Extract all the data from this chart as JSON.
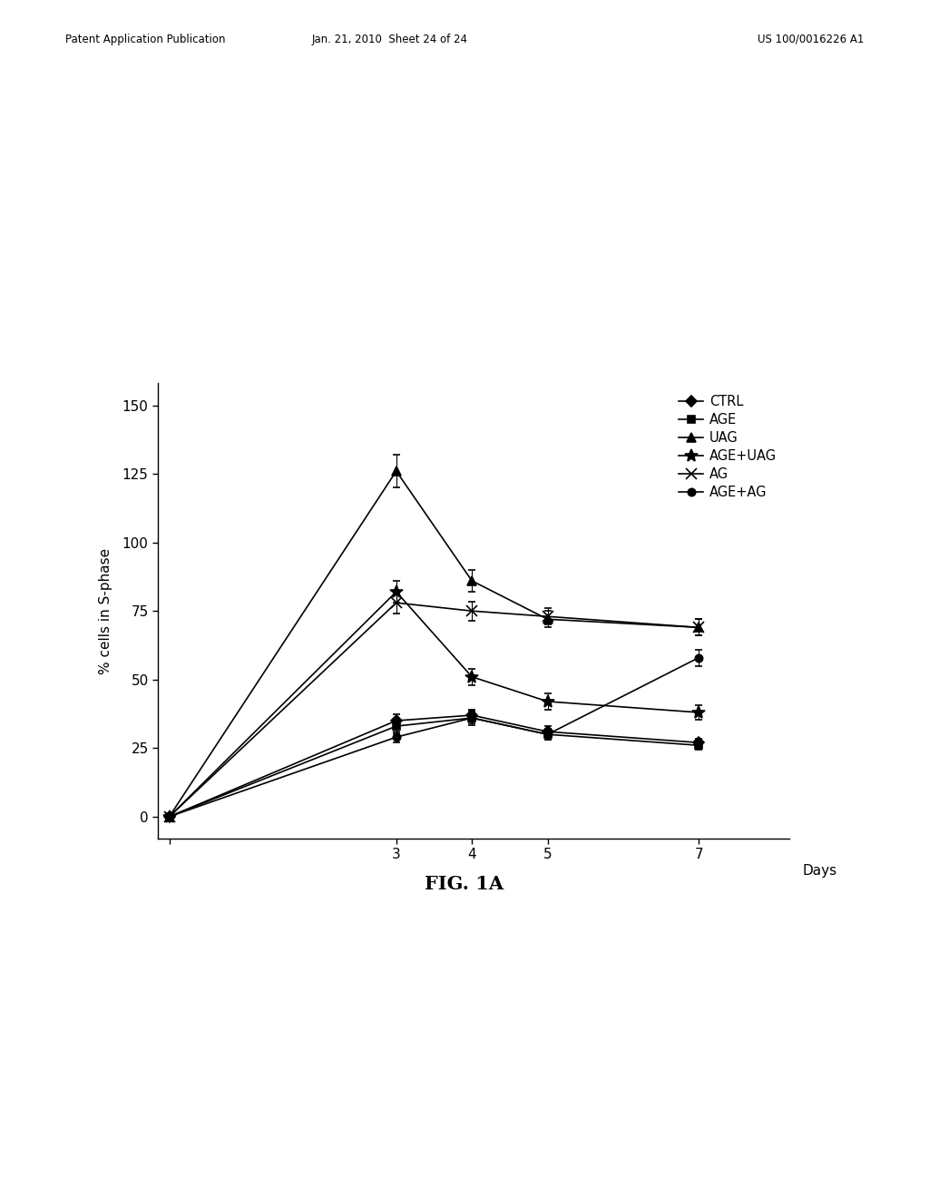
{
  "x": [
    0,
    3,
    4,
    5,
    7
  ],
  "series": {
    "CTRL": {
      "y": [
        0,
        35,
        37,
        31,
        27
      ],
      "yerr": [
        0,
        2.5,
        2,
        2,
        1.5
      ],
      "marker": "D",
      "linestyle": "-",
      "color": "#000000",
      "markersize": 6,
      "markerfilled": true
    },
    "AGE": {
      "y": [
        0,
        33,
        36,
        30,
        26
      ],
      "yerr": [
        0,
        2.5,
        2,
        2,
        1.5
      ],
      "marker": "s",
      "linestyle": "-",
      "color": "#000000",
      "markersize": 6,
      "markerfilled": true
    },
    "UAG": {
      "y": [
        0,
        126,
        86,
        72,
        69
      ],
      "yerr": [
        0,
        6,
        4,
        3,
        3
      ],
      "marker": "^",
      "linestyle": "-",
      "color": "#000000",
      "markersize": 7,
      "markerfilled": true
    },
    "AGE+UAG": {
      "y": [
        0,
        82,
        51,
        42,
        38
      ],
      "yerr": [
        0,
        4,
        3,
        3,
        2.5
      ],
      "marker": "*",
      "linestyle": "-",
      "color": "#000000",
      "markersize": 10,
      "markerfilled": true
    },
    "AG": {
      "y": [
        0,
        78,
        75,
        73,
        69
      ],
      "yerr": [
        0,
        4,
        3.5,
        3,
        3
      ],
      "marker": "x",
      "linestyle": "-",
      "color": "#000000",
      "markersize": 8,
      "markerfilled": false
    },
    "AGE+AG": {
      "y": [
        0,
        29,
        36,
        30,
        58
      ],
      "yerr": [
        0,
        2,
        2.5,
        2,
        3
      ],
      "marker": "o",
      "linestyle": "-",
      "color": "#000000",
      "markersize": 6,
      "markerfilled": true
    }
  },
  "xlabel": "Days",
  "ylabel": "% cells in S-phase",
  "yticks": [
    0,
    25,
    50,
    75,
    100,
    125,
    150
  ],
  "ylim": [
    -8,
    158
  ],
  "xlim": [
    -0.15,
    8.2
  ],
  "xticks": [
    0,
    3,
    4,
    5,
    7
  ],
  "xticklabels": [
    "",
    "3",
    "4",
    "5",
    "7"
  ],
  "background_color": "#ffffff",
  "fig_caption": "FIG. 1A",
  "header_left": "Patent Application Publication",
  "header_center": "Jan. 21, 2010  Sheet 24 of 24",
  "header_right": "US 100/0016226 A1"
}
